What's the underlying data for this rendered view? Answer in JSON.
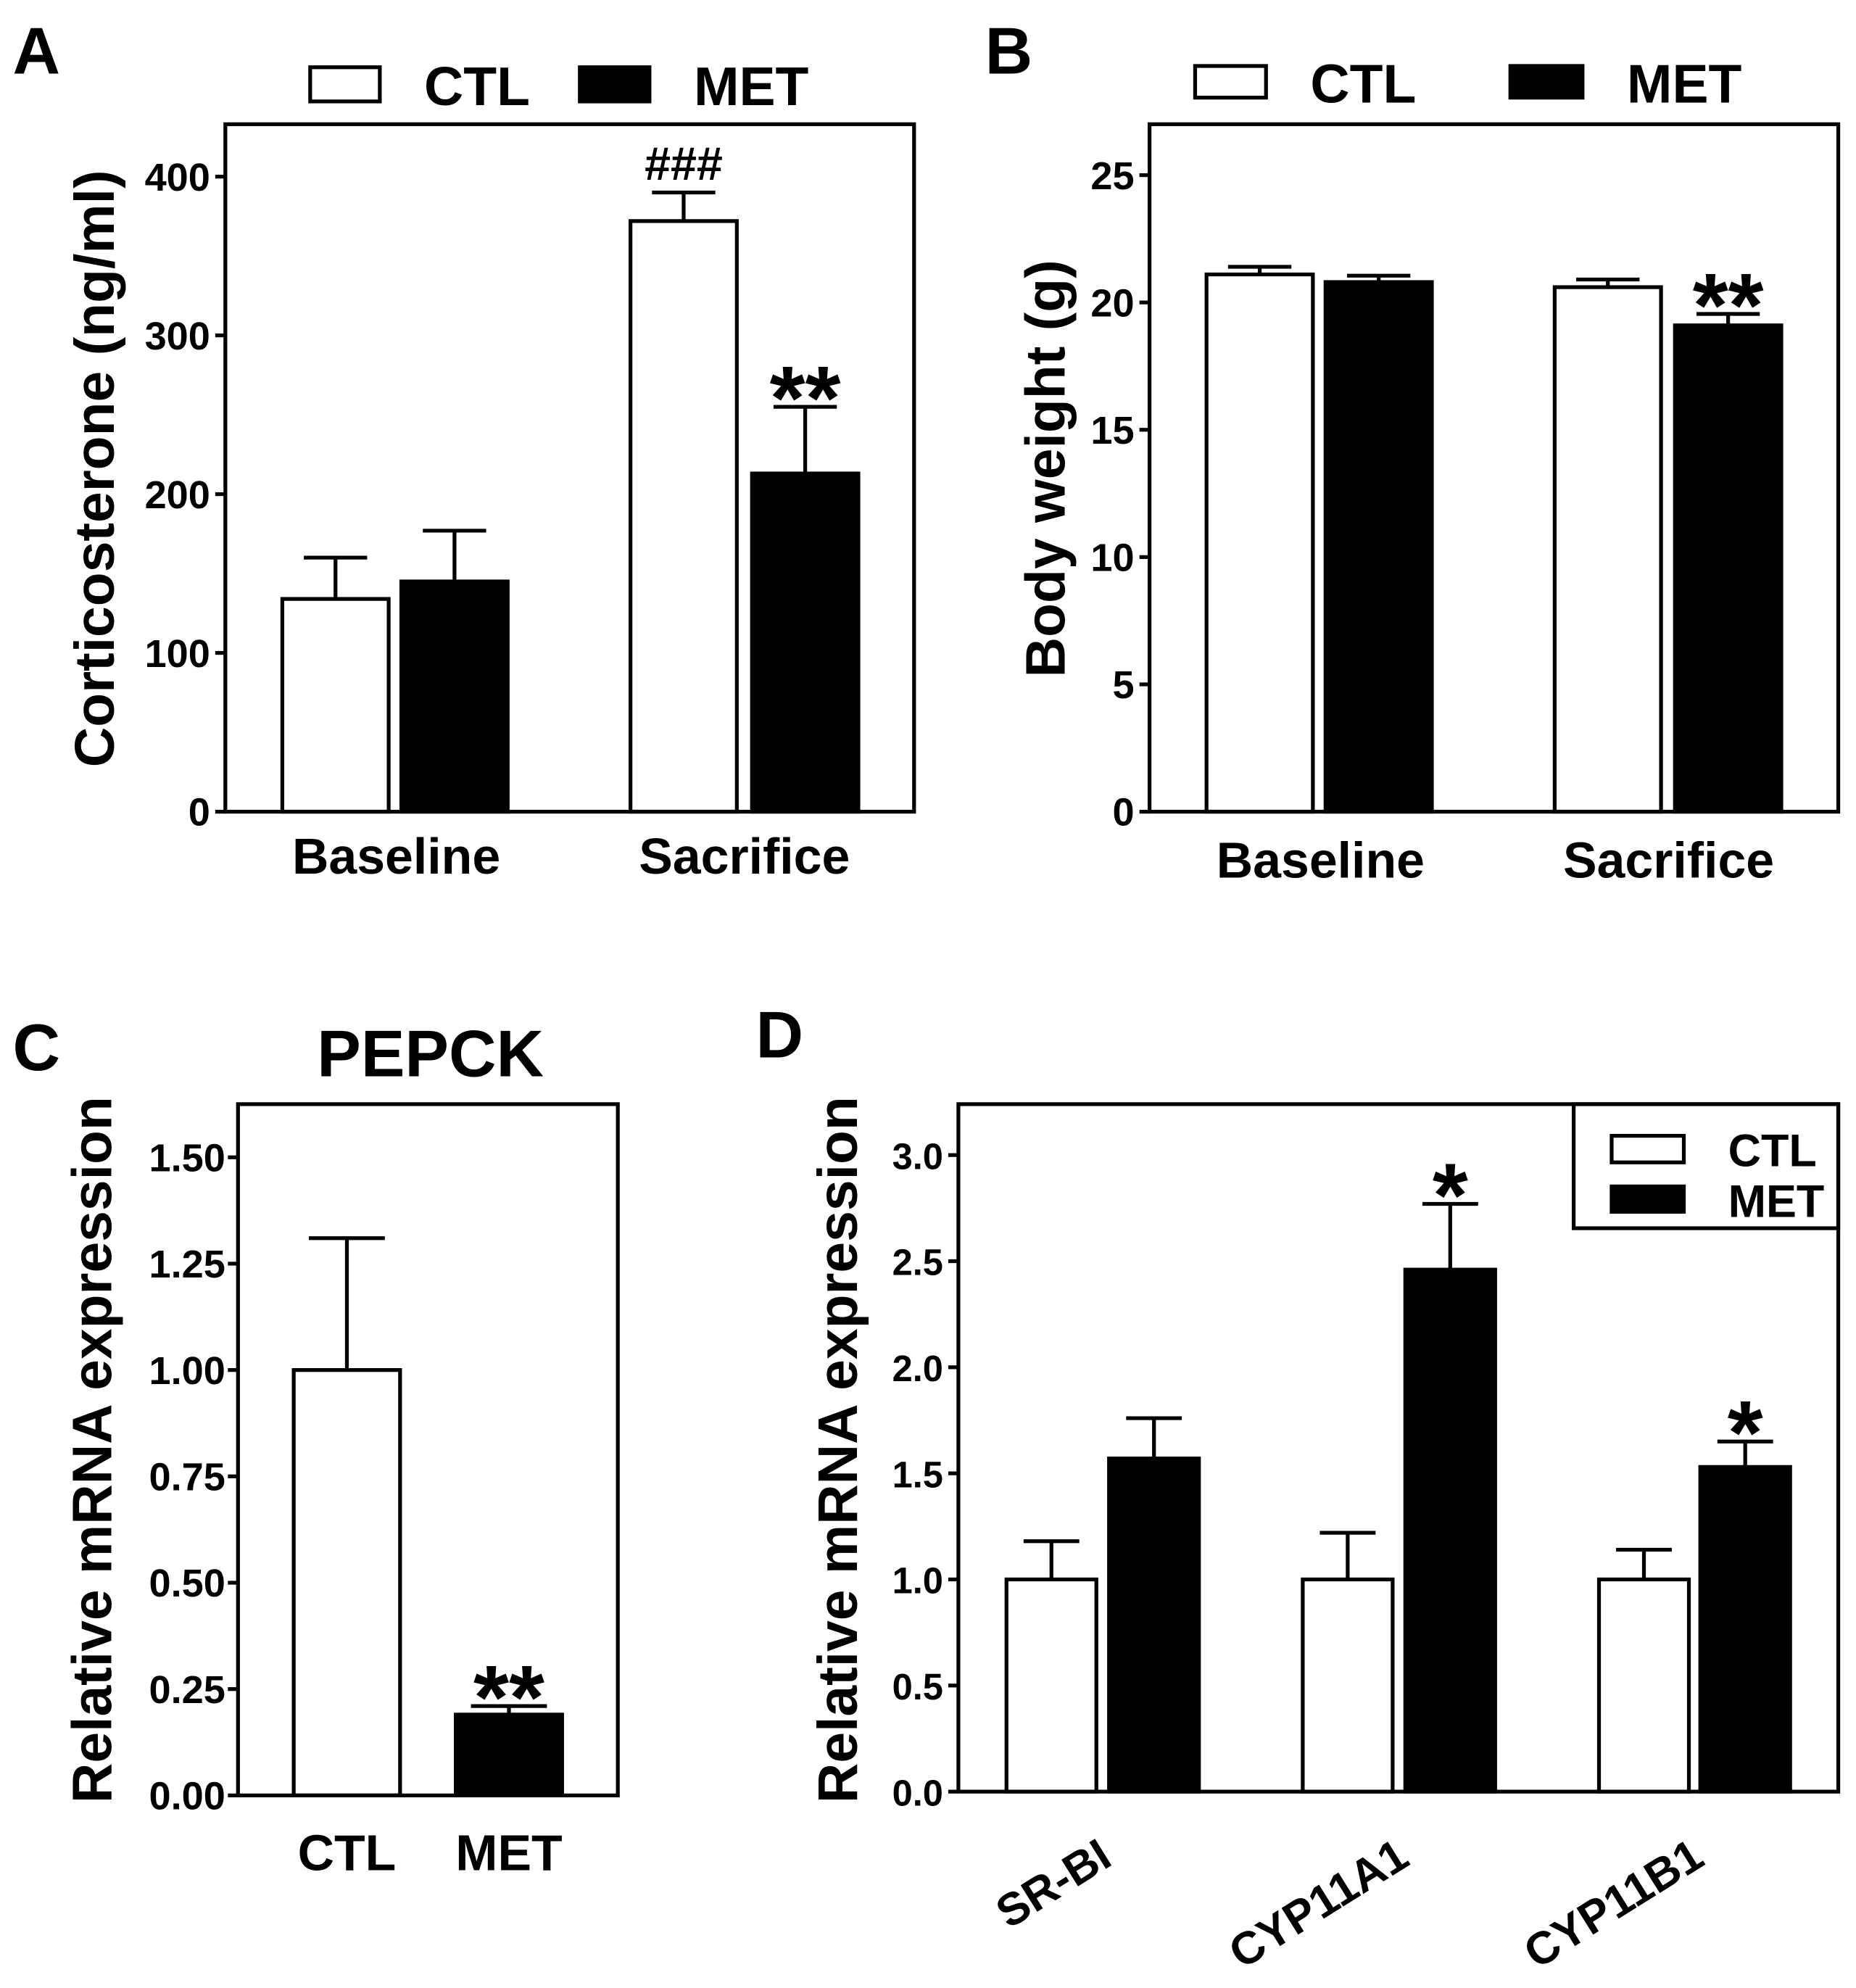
{
  "chart_data": [
    {
      "panel": "A",
      "type": "bar",
      "categories": [
        "Baseline",
        "Sacrifice"
      ],
      "series": [
        {
          "name": "CTL",
          "color": "#ffffff",
          "values": [
            134,
            372
          ],
          "errors": [
            26,
            18
          ]
        },
        {
          "name": "MET",
          "color": "#000000",
          "values": [
            145,
            213
          ],
          "errors": [
            32,
            42
          ]
        }
      ],
      "annotations": [
        {
          "category": "Sacrifice",
          "series": "CTL",
          "text": "###"
        },
        {
          "category": "Sacrifice",
          "series": "MET",
          "text": "**"
        }
      ],
      "ylabel": "Corticosterone (ng/ml)",
      "ylim": [
        0,
        433
      ],
      "yticks": [
        "0",
        "100",
        "200",
        "300",
        "400"
      ],
      "grid": false,
      "legend": "top"
    },
    {
      "panel": "B",
      "type": "bar",
      "categories": [
        "Baseline",
        "Sacrifice"
      ],
      "series": [
        {
          "name": "CTL",
          "color": "#ffffff",
          "values": [
            21.1,
            20.6
          ],
          "errors": [
            0.3,
            0.3
          ]
        },
        {
          "name": "MET",
          "color": "#000000",
          "values": [
            20.8,
            19.1
          ],
          "errors": [
            0.25,
            0.45
          ]
        }
      ],
      "annotations": [
        {
          "category": "Sacrifice",
          "series": "MET",
          "text": "**"
        }
      ],
      "ylabel": "Body weight (g)",
      "ylim": [
        0,
        27
      ],
      "yticks": [
        "0",
        "5",
        "10",
        "15",
        "20",
        "25"
      ],
      "grid": false,
      "legend": "top"
    },
    {
      "panel": "C",
      "type": "bar",
      "title": "PEPCK",
      "categories": [
        "CTL",
        "MET"
      ],
      "values": [
        1.0,
        0.19
      ],
      "errors": [
        0.31,
        0.02
      ],
      "colors": [
        "#ffffff",
        "#000000"
      ],
      "annotations": [
        {
          "category": "MET",
          "series": null,
          "text": "**"
        }
      ],
      "ylabel": "Relative mRNA expression",
      "ylim": [
        0,
        1.625
      ],
      "yticks": [
        "0.00",
        "0.25",
        "0.50",
        "0.75",
        "1.00",
        "1.25",
        "1.50"
      ],
      "grid": false
    },
    {
      "panel": "D",
      "type": "bar",
      "categories": [
        "SR-BI",
        "CYP11A1",
        "CYP11B1"
      ],
      "series": [
        {
          "name": "CTL",
          "color": "#ffffff",
          "values": [
            1.0,
            1.0,
            1.0
          ],
          "errors": [
            0.18,
            0.22,
            0.14
          ]
        },
        {
          "name": "MET",
          "color": "#000000",
          "values": [
            1.57,
            2.46,
            1.53
          ],
          "errors": [
            0.19,
            0.31,
            0.12
          ]
        }
      ],
      "annotations": [
        {
          "category": "CYP11A1",
          "series": "MET",
          "text": "*"
        },
        {
          "category": "CYP11B1",
          "series": "MET",
          "text": "*"
        }
      ],
      "ylabel": "Relative mRNA expression",
      "ylim": [
        0,
        3.24
      ],
      "yticks": [
        "0.0",
        "0.5",
        "1.0",
        "1.5",
        "2.0",
        "2.5",
        "3.0"
      ],
      "grid": false,
      "legend": "top-right"
    }
  ]
}
